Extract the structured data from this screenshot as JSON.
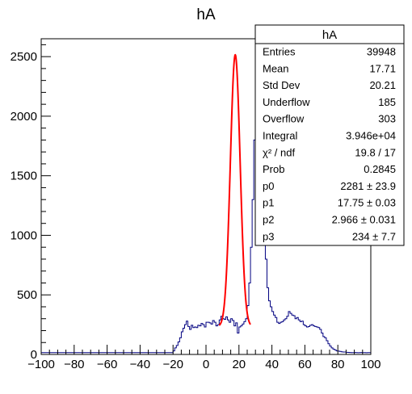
{
  "chart_data": {
    "type": "histogram",
    "title": "hA",
    "xlim": [
      -100,
      100
    ],
    "ylim": [
      0,
      2650
    ],
    "bin_width": 1,
    "x_ticks": [
      -100,
      -80,
      -60,
      -40,
      -20,
      0,
      20,
      40,
      60,
      80,
      100
    ],
    "x_tick_labels": [
      "−100",
      "−80",
      "−60",
      "−40",
      "−20",
      "0",
      "20",
      "40",
      "60",
      "80",
      "100"
    ],
    "y_ticks": [
      0,
      500,
      1000,
      1500,
      2000,
      2500
    ],
    "y_tick_labels": [
      "0",
      "500",
      "1000",
      "1500",
      "2000",
      "2500"
    ],
    "hist_color": "#000080",
    "fit_color": "#ff0000",
    "histogram": {
      "x_start": -100,
      "values": [
        15,
        15,
        15,
        15,
        15,
        15,
        15,
        15,
        15,
        15,
        15,
        15,
        15,
        15,
        15,
        15,
        15,
        15,
        15,
        15,
        15,
        15,
        15,
        15,
        15,
        15,
        15,
        15,
        15,
        15,
        15,
        15,
        15,
        15,
        15,
        15,
        15,
        15,
        15,
        15,
        15,
        15,
        15,
        15,
        15,
        15,
        15,
        15,
        15,
        15,
        15,
        15,
        15,
        15,
        15,
        15,
        15,
        15,
        15,
        15,
        15,
        15,
        15,
        15,
        15,
        15,
        15,
        15,
        15,
        15,
        15,
        15,
        15,
        15,
        15,
        15,
        15,
        15,
        15,
        15,
        30,
        55,
        75,
        105,
        140,
        190,
        220,
        250,
        280,
        235,
        210,
        245,
        225,
        230,
        225,
        245,
        240,
        260,
        250,
        230,
        270,
        270,
        265,
        255,
        285,
        270,
        240,
        250,
        290,
        320,
        300,
        295,
        315,
        290,
        270,
        300,
        285,
        240,
        265,
        180,
        230,
        240,
        255,
        275,
        300,
        410,
        600,
        900,
        1300,
        1800,
        2250,
        2530,
        2400,
        2100,
        1600,
        1100,
        800,
        560,
        450,
        400,
        360,
        330,
        310,
        270,
        260,
        270,
        275,
        290,
        300,
        320,
        360,
        345,
        330,
        325,
        300,
        310,
        290,
        275,
        280,
        250,
        240,
        230,
        235,
        245,
        250,
        240,
        235,
        230,
        225,
        210,
        180,
        150,
        140,
        115,
        90,
        70,
        55,
        45,
        38,
        30,
        28,
        25,
        22,
        20,
        20,
        18,
        17,
        16,
        15,
        15,
        16,
        15,
        14,
        15,
        16,
        15,
        15,
        14,
        15,
        15
      ]
    },
    "fit": {
      "function": "gaussian + constant",
      "p0": 2281,
      "p1": 17.75,
      "p2": 2.966,
      "p3": 234,
      "x_range": [
        8,
        27
      ]
    }
  },
  "stats_box": {
    "title": "hA",
    "rows": [
      {
        "label": "Entries",
        "value": "39948"
      },
      {
        "label": "Mean",
        "value": "17.71"
      },
      {
        "label": "Std Dev",
        "value": "20.21"
      },
      {
        "label": "Underflow",
        "value": "185"
      },
      {
        "label": "Overflow",
        "value": "303"
      },
      {
        "label": "Integral",
        "value": "3.946e+04"
      },
      {
        "label": "χ² / ndf",
        "value": "19.8 / 17"
      },
      {
        "label": "Prob",
        "value": "0.2845"
      },
      {
        "label": "p0",
        "value": "2281 ± 23.9"
      },
      {
        "label": "p1",
        "value": "17.75 ± 0.03"
      },
      {
        "label": "p2",
        "value": "2.966 ± 0.031"
      },
      {
        "label": "p3",
        "value": "234 ± 7.7"
      }
    ]
  }
}
